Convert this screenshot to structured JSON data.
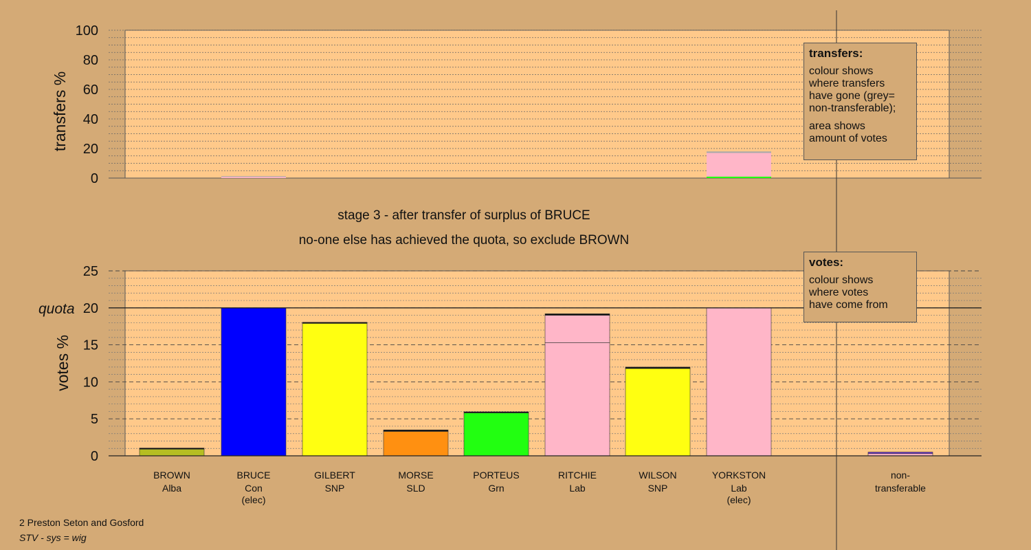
{
  "chart_data": [
    {
      "type": "bar",
      "panel": "transfers",
      "ylabel": "transfers %",
      "ylim": [
        0,
        100
      ],
      "yticks": [
        0,
        20,
        40,
        60,
        80,
        100
      ],
      "grid": true,
      "bars": [
        {
          "candidate": "BRUCE",
          "segments": [
            {
              "color": "#ffb6c8",
              "value": 1.0
            },
            {
              "color": "#a9a9a9",
              "value": 0.3
            }
          ]
        },
        {
          "candidate": "YORKSTON",
          "segments": [
            {
              "color": "#22ff11",
              "value": 1.0
            },
            {
              "color": "#ffb6c8",
              "value": 16.0
            },
            {
              "color": "#a9a9a9",
              "value": 1.0
            }
          ]
        }
      ]
    },
    {
      "type": "bar",
      "panel": "votes",
      "ylabel": "votes %",
      "ylim": [
        0,
        25
      ],
      "yticks": [
        0,
        5,
        10,
        15,
        20,
        25
      ],
      "quota": 20,
      "quota_label": "quota",
      "grid": true,
      "categories": [
        "BROWN",
        "BRUCE",
        "GILBERT",
        "MORSE",
        "PORTEUS",
        "RITCHIE",
        "WILSON",
        "YORKSTON",
        "non-transferable"
      ],
      "bars": [
        {
          "candidate": "BROWN",
          "segments": [
            {
              "color": "#b5be22",
              "value": 0.9
            },
            {
              "color": "#111111",
              "value": 0.15
            }
          ]
        },
        {
          "candidate": "BRUCE",
          "segments": [
            {
              "color": "#0000ff",
              "value": 20.0
            }
          ]
        },
        {
          "candidate": "GILBERT",
          "segments": [
            {
              "color": "#ffff11",
              "value": 17.9
            },
            {
              "color": "#111111",
              "value": 0.15
            }
          ]
        },
        {
          "candidate": "MORSE",
          "segments": [
            {
              "color": "#ff9011",
              "value": 3.3
            },
            {
              "color": "#111111",
              "value": 0.2
            }
          ]
        },
        {
          "candidate": "PORTEUS",
          "segments": [
            {
              "color": "#22ff11",
              "value": 5.8
            },
            {
              "color": "#111111",
              "value": 0.15
            }
          ]
        },
        {
          "candidate": "RITCHIE",
          "segments": [
            {
              "color": "#ffb6c8",
              "value": 15.3
            },
            {
              "color": "#ffb6c8",
              "value": 3.7
            },
            {
              "color": "#111111",
              "value": 0.2
            }
          ]
        },
        {
          "candidate": "WILSON",
          "segments": [
            {
              "color": "#ffff11",
              "value": 11.8
            },
            {
              "color": "#111111",
              "value": 0.2
            }
          ]
        },
        {
          "candidate": "YORKSTON",
          "segments": [
            {
              "color": "#ffb6c8",
              "value": 20.0
            }
          ]
        },
        {
          "candidate": "non-transferable",
          "segments": [
            {
              "color": "#ffb6c8",
              "value": 0.3
            },
            {
              "color": "#6633cc",
              "value": 0.2
            }
          ]
        }
      ]
    }
  ],
  "candidates": [
    {
      "name": "BROWN",
      "party": "Alba",
      "note": ""
    },
    {
      "name": "BRUCE",
      "party": "Con",
      "note": "(elec)"
    },
    {
      "name": "GILBERT",
      "party": "SNP",
      "note": ""
    },
    {
      "name": "MORSE",
      "party": "SLD",
      "note": ""
    },
    {
      "name": "PORTEUS",
      "party": "Grn",
      "note": ""
    },
    {
      "name": "RITCHIE",
      "party": "Lab",
      "note": ""
    },
    {
      "name": "WILSON",
      "party": "SNP",
      "note": ""
    },
    {
      "name": "YORKSTON",
      "party": "Lab",
      "note": "(elec)"
    },
    {
      "name": "non-",
      "party": "transferable",
      "note": ""
    }
  ],
  "stage_title": "stage 3 - after transfer of surplus of BRUCE",
  "stage_subtitle": "no-one else has achieved the quota, so exclude BROWN",
  "legend_transfers": {
    "title": "transfers:",
    "lines1": [
      "colour shows",
      "where transfers",
      "have gone (grey=",
      "non-transferable);"
    ],
    "lines2": [
      "area shows",
      "amount of votes"
    ]
  },
  "legend_votes": {
    "title": "votes:",
    "lines": [
      "colour shows",
      "where votes",
      "have come from"
    ]
  },
  "footer": {
    "ward": "2 Preston Seton and Gosford",
    "system": "STV - sys = wig"
  },
  "colors": {
    "background": "#d4aa76",
    "plot_area": "#ffc98a"
  }
}
